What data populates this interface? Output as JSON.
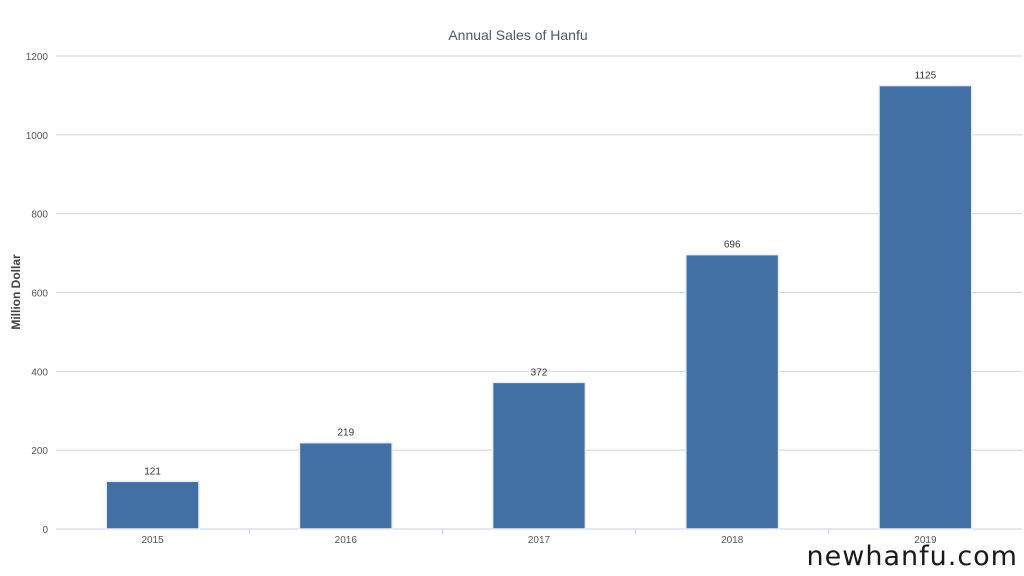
{
  "chart_data": {
    "type": "bar",
    "title": "Annual Sales of Hanfu",
    "xlabel": "",
    "ylabel": "Million Dollar",
    "categories": [
      "2015",
      "2016",
      "2017",
      "2018",
      "2019"
    ],
    "values": [
      121,
      219,
      372,
      696,
      1125
    ],
    "data_labels": [
      "121",
      "219",
      "372",
      "696",
      "1125"
    ],
    "y_ticks": [
      0,
      200,
      400,
      600,
      800,
      1000,
      1200
    ],
    "ylim": [
      0,
      1200
    ],
    "grid": true,
    "legend": "none",
    "bar_color": "#4270a5"
  },
  "watermark": "newhanfu.com"
}
